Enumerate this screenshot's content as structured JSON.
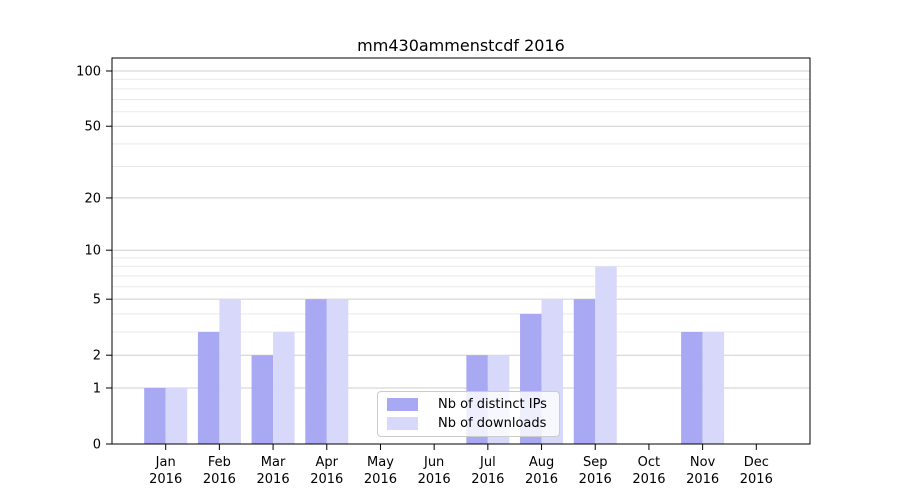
{
  "chart_data": {
    "type": "bar",
    "title": "mm430ammenstcdf 2016",
    "categories": [
      "Jan 2016",
      "Feb 2016",
      "Mar 2016",
      "Apr 2016",
      "May 2016",
      "Jun 2016",
      "Jul 2016",
      "Aug 2016",
      "Sep 2016",
      "Oct 2016",
      "Nov 2016",
      "Dec 2016"
    ],
    "series": [
      {
        "name": "Nb of distinct IPs",
        "color": "#a9a9f3",
        "values": [
          1,
          3,
          2,
          5,
          0,
          0,
          2,
          4,
          5,
          0,
          3,
          0
        ]
      },
      {
        "name": "Nb of downloads",
        "color": "#d8d8fa",
        "values": [
          1,
          5,
          3,
          5,
          0,
          0,
          2,
          5,
          8,
          0,
          3,
          0
        ]
      }
    ],
    "xlabel": "",
    "ylabel": "",
    "y_axis": {
      "scale": "log1p",
      "major_ticks": [
        0,
        1,
        2,
        5,
        10,
        20,
        50,
        100
      ],
      "minor_gridlines": [
        3,
        4,
        6,
        7,
        8,
        9,
        30,
        40,
        60,
        70,
        80,
        90
      ],
      "ylim": [
        0,
        117
      ]
    },
    "grid": {
      "on": true,
      "major_color": "#cfcfcf",
      "minor_color": "#e9e9e9"
    },
    "legend": {
      "position": "lower center",
      "background": "rgba(255,255,255,0.8)"
    },
    "axis_color": "#000000"
  }
}
